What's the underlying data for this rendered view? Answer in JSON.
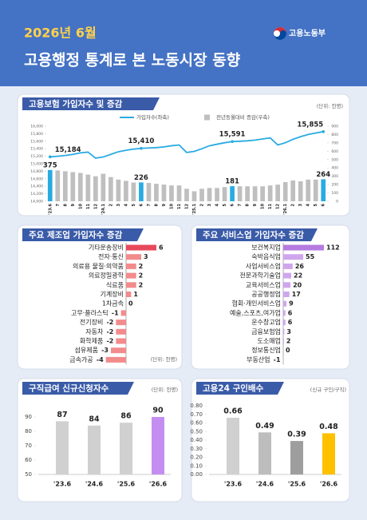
{
  "header": {
    "date": "2026년 6월",
    "ministry": "고용노동부",
    "title": "고용행정 통계로 본 노동시장 동향"
  },
  "chart_data": [
    {
      "type": "combo",
      "title": "고용보험 가입자수 및 증감",
      "unit": "(단위: 천명)",
      "categories": [
        "'23.6",
        "7",
        "8",
        "9",
        "10",
        "11",
        "12",
        "'24.1",
        "2",
        "3",
        "4",
        "5",
        "6",
        "7",
        "8",
        "9",
        "10",
        "11",
        "12",
        "'25.1",
        "2",
        "3",
        "4",
        "5",
        "6",
        "7",
        "8",
        "9",
        "10",
        "11",
        "12",
        "'26.1",
        "2",
        "3",
        "4",
        "5",
        "6"
      ],
      "series": [
        {
          "name": "가입자수(좌축)",
          "type": "line",
          "axis": "y",
          "color": "#29abe2",
          "values": [
            15184,
            15200,
            15220,
            15250,
            15290,
            15310,
            15150,
            15180,
            15250,
            15320,
            15360,
            15390,
            15410,
            15420,
            15430,
            15450,
            15480,
            15500,
            15300,
            15330,
            15400,
            15480,
            15520,
            15560,
            15591,
            15600,
            15610,
            15630,
            15660,
            15690,
            15500,
            15560,
            15650,
            15720,
            15780,
            15820,
            15855
          ],
          "value_labels": [
            "15,184",
            null,
            null,
            null,
            null,
            null,
            null,
            null,
            null,
            null,
            null,
            null,
            "15,410",
            null,
            null,
            null,
            null,
            null,
            null,
            null,
            null,
            null,
            null,
            null,
            "15,591",
            null,
            null,
            null,
            null,
            null,
            null,
            null,
            null,
            null,
            null,
            null,
            "15,855"
          ]
        },
        {
          "name": "전년동월대비 증감(우축)",
          "type": "bar",
          "axis": "y2",
          "color": "#bfbfbf",
          "values": [
            375,
            370,
            360,
            350,
            340,
            320,
            300,
            330,
            290,
            260,
            245,
            225,
            226,
            220,
            210,
            200,
            190,
            190,
            150,
            120,
            150,
            160,
            160,
            170,
            181,
            180,
            180,
            180,
            180,
            190,
            200,
            230,
            250,
            240,
            260,
            260,
            264
          ],
          "colors": [
            "#29abe2",
            "#bfbfbf",
            "#bfbfbf",
            "#bfbfbf",
            "#bfbfbf",
            "#bfbfbf",
            "#bfbfbf",
            "#bfbfbf",
            "#bfbfbf",
            "#bfbfbf",
            "#bfbfbf",
            "#bfbfbf",
            "#29abe2",
            "#bfbfbf",
            "#bfbfbf",
            "#bfbfbf",
            "#bfbfbf",
            "#bfbfbf",
            "#bfbfbf",
            "#bfbfbf",
            "#bfbfbf",
            "#bfbfbf",
            "#bfbfbf",
            "#bfbfbf",
            "#29abe2",
            "#bfbfbf",
            "#bfbfbf",
            "#bfbfbf",
            "#bfbfbf",
            "#bfbfbf",
            "#bfbfbf",
            "#bfbfbf",
            "#bfbfbf",
            "#bfbfbf",
            "#bfbfbf",
            "#bfbfbf",
            "#29abe2"
          ]
        }
      ],
      "ylim": [
        14000,
        16000
      ],
      "yticks": [
        {
          "value": 14000,
          "label": "14,000"
        },
        {
          "value": 14200,
          "label": "14,200"
        },
        {
          "value": 14400,
          "label": "14,400"
        },
        {
          "value": 14600,
          "label": "14,600"
        },
        {
          "value": 14800,
          "label": "14,800"
        },
        {
          "value": 15000,
          "label": "15,000"
        },
        {
          "value": 15200,
          "label": "15,200"
        },
        {
          "value": 15400,
          "label": "15,400"
        },
        {
          "value": 15600,
          "label": "15,600"
        },
        {
          "value": 15800,
          "label": "15,800"
        },
        {
          "value": 16000,
          "label": "16,000"
        }
      ],
      "y2lim": [
        0,
        900
      ],
      "y2ticks": [
        0,
        100,
        200,
        300,
        400,
        500,
        600,
        700,
        800,
        900
      ]
    },
    {
      "type": "hbar",
      "title": "주요 제조업 가입자수 증감",
      "unit": "(단위: 천명)",
      "categories": [
        "기타운송장비",
        "전자·통신",
        "의료용 물질·의약품",
        "의료정밀광학",
        "식료품",
        "기계장비",
        "1차금속",
        "고무·플라스틱",
        "전기장비",
        "자동차",
        "화학제품",
        "섬유제품",
        "금속가공"
      ],
      "values": [
        6,
        3,
        2,
        2,
        2,
        1,
        0,
        -1,
        -2,
        -2,
        -2,
        -3,
        -4
      ],
      "colors": [
        "#e8495a",
        "#f28b8b",
        "#f28b8b",
        "#f28b8b",
        "#f28b8b",
        "#f28b8b",
        "#f28b8b",
        "#f28b8b",
        "#f28b8b",
        "#f28b8b",
        "#f28b8b",
        "#f28b8b",
        "#f28b8b"
      ]
    },
    {
      "type": "hbar",
      "title": "주요 서비스업 가입자수 증감",
      "categories": [
        "보건복지업",
        "숙박음식업",
        "사업서비스업",
        "전문과학기술업",
        "교육서비스업",
        "공공행정업",
        "협회·개인서비스업",
        "예술,스포츠,여가업",
        "운수창고업",
        "금융보험업",
        "도소매업",
        "정보통신업",
        "부동산업"
      ],
      "values": [
        112,
        55,
        26,
        22,
        20,
        17,
        9,
        6,
        6,
        3,
        2,
        0,
        -1
      ],
      "colors": [
        "#b57be0",
        "#cfa6ee",
        "#cfa6ee",
        "#cfa6ee",
        "#cfa6ee",
        "#cfa6ee",
        "#cfa6ee",
        "#cfa6ee",
        "#cfa6ee",
        "#cfa6ee",
        "#cfa6ee",
        "#cfa6ee",
        "#cfa6ee"
      ]
    },
    {
      "type": "bar",
      "title": "구직급여 신규신청자수",
      "unit": "(단위: 천명)",
      "categories": [
        "'23.6",
        "'24.6",
        "'25.6",
        "'26.6"
      ],
      "values": [
        87,
        84,
        86,
        90
      ],
      "colors": [
        "#d0d0d0",
        "#d0d0d0",
        "#d0d0d0",
        "#c48ef0"
      ],
      "ylim": [
        50,
        90
      ],
      "yticks": [
        50,
        60,
        70,
        80,
        90
      ]
    },
    {
      "type": "bar",
      "title": "고용24 구인배수",
      "unit": "(신규 구인/구직)",
      "categories": [
        "'23.6",
        "'24.6",
        "'25.6",
        "'26.6"
      ],
      "values": [
        0.66,
        0.49,
        0.39,
        0.48
      ],
      "colors": [
        "#d0d0d0",
        "#bdbdbd",
        "#9e9e9e",
        "#ffc000"
      ],
      "ylim": [
        0,
        0.8
      ],
      "yticks": [
        {
          "value": 0,
          "label": "0.00"
        },
        {
          "value": 0.1,
          "label": "0.10"
        },
        {
          "value": 0.2,
          "label": "0.20"
        },
        {
          "value": 0.3,
          "label": "0.30"
        },
        {
          "value": 0.4,
          "label": "0.40"
        },
        {
          "value": 0.5,
          "label": "0.50"
        },
        {
          "value": 0.6,
          "label": "0.60"
        },
        {
          "value": 0.7,
          "label": "0.70"
        },
        {
          "value": 0.8,
          "label": "0.80"
        }
      ]
    }
  ]
}
